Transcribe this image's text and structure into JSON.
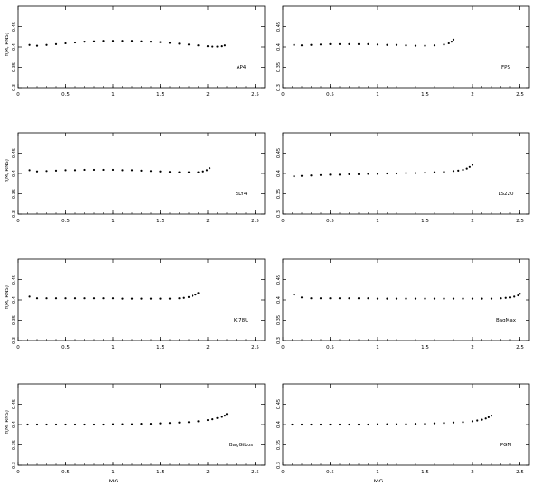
{
  "chart_data": [
    {
      "type": "scatter",
      "label": "AP4",
      "ylabel": "f(M, RNS)",
      "xlabel": "",
      "xlim": [
        0,
        2.6
      ],
      "ylim": [
        0.3,
        0.5
      ],
      "xticks": [
        "0",
        "0.5",
        "1",
        "1.5",
        "2",
        "2.5"
      ],
      "yticks": [
        "0.3",
        "0.35",
        "0.4",
        "0.45"
      ],
      "x": [
        0.12,
        0.2,
        0.3,
        0.4,
        0.5,
        0.6,
        0.7,
        0.8,
        0.9,
        1.0,
        1.1,
        1.2,
        1.3,
        1.4,
        1.5,
        1.6,
        1.7,
        1.8,
        1.9,
        2.0,
        2.05,
        2.1,
        2.15,
        2.18
      ],
      "y": [
        0.405,
        0.403,
        0.405,
        0.407,
        0.409,
        0.411,
        0.413,
        0.414,
        0.415,
        0.415,
        0.415,
        0.415,
        0.414,
        0.413,
        0.412,
        0.41,
        0.408,
        0.406,
        0.404,
        0.402,
        0.401,
        0.401,
        0.402,
        0.404
      ]
    },
    {
      "type": "scatter",
      "label": "FPS",
      "ylabel": "",
      "xlabel": "",
      "xlim": [
        0,
        2.6
      ],
      "ylim": [
        0.3,
        0.5
      ],
      "xticks": [
        "0",
        "0.5",
        "1",
        "1.5",
        "2",
        "2.5"
      ],
      "yticks": [
        "0.3",
        "0.35",
        "0.4",
        "0.45"
      ],
      "x": [
        0.12,
        0.2,
        0.3,
        0.4,
        0.5,
        0.6,
        0.7,
        0.8,
        0.9,
        1.0,
        1.1,
        1.2,
        1.3,
        1.4,
        1.5,
        1.6,
        1.7,
        1.75,
        1.78,
        1.8
      ],
      "y": [
        0.405,
        0.404,
        0.405,
        0.406,
        0.407,
        0.407,
        0.407,
        0.407,
        0.407,
        0.406,
        0.405,
        0.405,
        0.404,
        0.403,
        0.403,
        0.404,
        0.406,
        0.409,
        0.413,
        0.418
      ]
    },
    {
      "type": "scatter",
      "label": "SLY4",
      "ylabel": "f(M, RNS)",
      "xlabel": "",
      "xlim": [
        0,
        2.6
      ],
      "ylim": [
        0.3,
        0.5
      ],
      "xticks": [
        "0",
        "0.5",
        "1",
        "1.5",
        "2",
        "2.5"
      ],
      "yticks": [
        "0.3",
        "0.35",
        "0.4",
        "0.45"
      ],
      "x": [
        0.12,
        0.2,
        0.3,
        0.4,
        0.5,
        0.6,
        0.7,
        0.8,
        0.9,
        1.0,
        1.1,
        1.2,
        1.3,
        1.4,
        1.5,
        1.6,
        1.7,
        1.8,
        1.9,
        1.95,
        1.99,
        2.02
      ],
      "y": [
        0.408,
        0.405,
        0.406,
        0.407,
        0.408,
        0.408,
        0.409,
        0.409,
        0.409,
        0.409,
        0.408,
        0.408,
        0.407,
        0.406,
        0.405,
        0.404,
        0.403,
        0.403,
        0.403,
        0.405,
        0.408,
        0.413
      ]
    },
    {
      "type": "scatter",
      "label": "LS220",
      "ylabel": "",
      "xlabel": "",
      "xlim": [
        0,
        2.6
      ],
      "ylim": [
        0.3,
        0.5
      ],
      "xticks": [
        "0",
        "0.5",
        "1",
        "1.5",
        "2",
        "2.5"
      ],
      "yticks": [
        "0.3",
        "0.35",
        "0.4",
        "0.45"
      ],
      "x": [
        0.12,
        0.2,
        0.3,
        0.4,
        0.5,
        0.6,
        0.7,
        0.8,
        0.9,
        1.0,
        1.1,
        1.2,
        1.3,
        1.4,
        1.5,
        1.6,
        1.7,
        1.8,
        1.85,
        1.9,
        1.94,
        1.97,
        2.0
      ],
      "y": [
        0.393,
        0.394,
        0.395,
        0.396,
        0.397,
        0.397,
        0.398,
        0.398,
        0.399,
        0.399,
        0.4,
        0.4,
        0.401,
        0.401,
        0.402,
        0.403,
        0.404,
        0.406,
        0.407,
        0.409,
        0.412,
        0.416,
        0.421
      ]
    },
    {
      "type": "scatter",
      "label": "KJ78U",
      "ylabel": "f(M, RNS)",
      "xlabel": "",
      "xlim": [
        0,
        2.6
      ],
      "ylim": [
        0.3,
        0.5
      ],
      "xticks": [
        "0",
        "0.5",
        "1",
        "1.5",
        "2",
        "2.5"
      ],
      "yticks": [
        "0.3",
        "0.35",
        "0.4",
        "0.45"
      ],
      "x": [
        0.12,
        0.2,
        0.3,
        0.4,
        0.5,
        0.6,
        0.7,
        0.8,
        0.9,
        1.0,
        1.1,
        1.2,
        1.3,
        1.4,
        1.5,
        1.6,
        1.7,
        1.75,
        1.8,
        1.84,
        1.87,
        1.9
      ],
      "y": [
        0.408,
        0.404,
        0.404,
        0.404,
        0.404,
        0.404,
        0.404,
        0.404,
        0.404,
        0.404,
        0.403,
        0.403,
        0.403,
        0.403,
        0.403,
        0.403,
        0.404,
        0.405,
        0.407,
        0.41,
        0.413,
        0.417
      ]
    },
    {
      "type": "scatter",
      "label": "BagMax",
      "ylabel": "",
      "xlabel": "",
      "xlim": [
        0,
        2.6
      ],
      "ylim": [
        0.3,
        0.5
      ],
      "xticks": [
        "0",
        "0.5",
        "1",
        "1.5",
        "2",
        "2.5"
      ],
      "yticks": [
        "0.3",
        "0.35",
        "0.4",
        "0.45"
      ],
      "x": [
        0.12,
        0.2,
        0.3,
        0.4,
        0.5,
        0.6,
        0.7,
        0.8,
        0.9,
        1.0,
        1.1,
        1.2,
        1.3,
        1.4,
        1.5,
        1.6,
        1.7,
        1.8,
        1.9,
        2.0,
        2.1,
        2.2,
        2.3,
        2.35,
        2.4,
        2.44,
        2.48,
        2.5
      ],
      "y": [
        0.413,
        0.406,
        0.404,
        0.404,
        0.404,
        0.404,
        0.404,
        0.404,
        0.404,
        0.403,
        0.403,
        0.403,
        0.403,
        0.403,
        0.403,
        0.403,
        0.403,
        0.403,
        0.403,
        0.403,
        0.403,
        0.403,
        0.404,
        0.405,
        0.406,
        0.408,
        0.411,
        0.415
      ]
    },
    {
      "type": "scatter",
      "label": "BagGibbs",
      "ylabel": "f(M, RNS)",
      "xlabel": "MG",
      "xlim": [
        0,
        2.6
      ],
      "ylim": [
        0.3,
        0.5
      ],
      "xticks": [
        "0",
        "0.5",
        "1",
        "1.5",
        "2",
        "2.5"
      ],
      "yticks": [
        "0.3",
        "0.35",
        "0.4",
        "0.45"
      ],
      "x": [
        0.1,
        0.2,
        0.3,
        0.4,
        0.5,
        0.6,
        0.7,
        0.8,
        0.9,
        1.0,
        1.1,
        1.2,
        1.3,
        1.4,
        1.5,
        1.6,
        1.7,
        1.8,
        1.9,
        2.0,
        2.05,
        2.1,
        2.15,
        2.18,
        2.2
      ],
      "y": [
        0.4,
        0.4,
        0.4,
        0.4,
        0.4,
        0.4,
        0.4,
        0.4,
        0.4,
        0.401,
        0.401,
        0.401,
        0.402,
        0.402,
        0.403,
        0.404,
        0.405,
        0.406,
        0.408,
        0.411,
        0.413,
        0.416,
        0.419,
        0.422,
        0.426
      ]
    },
    {
      "type": "scatter",
      "label": "PGM",
      "ylabel": "",
      "xlabel": "MG",
      "xlim": [
        0,
        2.6
      ],
      "ylim": [
        0.3,
        0.5
      ],
      "xticks": [
        "0",
        "0.5",
        "1",
        "1.5",
        "2",
        "2.5"
      ],
      "yticks": [
        "0.3",
        "0.35",
        "0.4",
        "0.45"
      ],
      "x": [
        0.1,
        0.2,
        0.3,
        0.4,
        0.5,
        0.6,
        0.7,
        0.8,
        0.9,
        1.0,
        1.1,
        1.2,
        1.3,
        1.4,
        1.5,
        1.6,
        1.7,
        1.8,
        1.9,
        2.0,
        2.05,
        2.1,
        2.14,
        2.17,
        2.2
      ],
      "y": [
        0.4,
        0.4,
        0.4,
        0.4,
        0.4,
        0.4,
        0.4,
        0.4,
        0.4,
        0.401,
        0.401,
        0.401,
        0.401,
        0.402,
        0.402,
        0.403,
        0.404,
        0.405,
        0.406,
        0.408,
        0.41,
        0.412,
        0.415,
        0.418,
        0.422
      ]
    }
  ]
}
